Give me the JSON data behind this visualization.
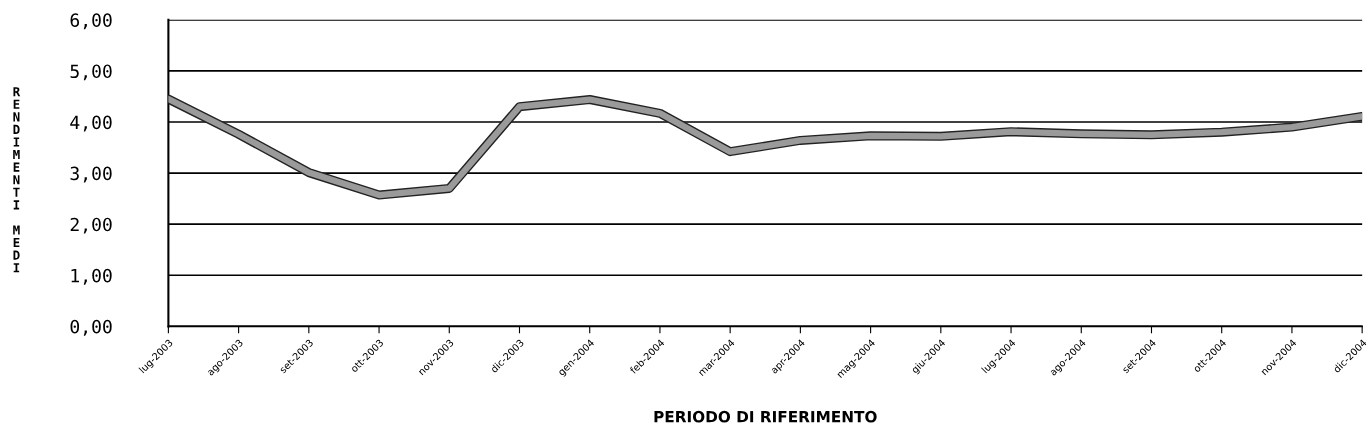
{
  "chart_data": {
    "type": "line",
    "xlabel": "PERIODO DI RIFERIMENTO",
    "ylabel": "RENDIMENTI MEDI",
    "categories": [
      "lug-2003",
      "ago-2003",
      "set-2003",
      "ott-2003",
      "nov-2003",
      "dic-2003",
      "gen-2004",
      "feb-2004",
      "mar-2004",
      "apr-2004",
      "mag-2004",
      "giu-2004",
      "lug-2004",
      "ago-2004",
      "set-2004",
      "ott-2004",
      "nov-2004",
      "dic-2004"
    ],
    "series": [
      {
        "color": "#9a9a9a",
        "values": [
          4.45,
          3.76,
          3.01,
          2.57,
          2.7,
          4.3,
          4.44,
          4.17,
          3.42,
          3.64,
          3.73,
          3.72,
          3.81,
          3.77,
          3.75,
          3.8,
          3.9,
          4.11
        ]
      }
    ],
    "ylim": [
      0,
      6
    ],
    "yticks": [
      {
        "value": 0,
        "label": "0,00"
      },
      {
        "value": 1,
        "label": "1,00"
      },
      {
        "value": 2,
        "label": "2,00"
      },
      {
        "value": 3,
        "label": "3,00"
      },
      {
        "value": 4,
        "label": "4,00"
      },
      {
        "value": 5,
        "label": "5,00"
      },
      {
        "value": 6,
        "label": "6,00"
      }
    ],
    "grid": "y",
    "legend": false,
    "marker": "none",
    "line_style": "solid"
  }
}
